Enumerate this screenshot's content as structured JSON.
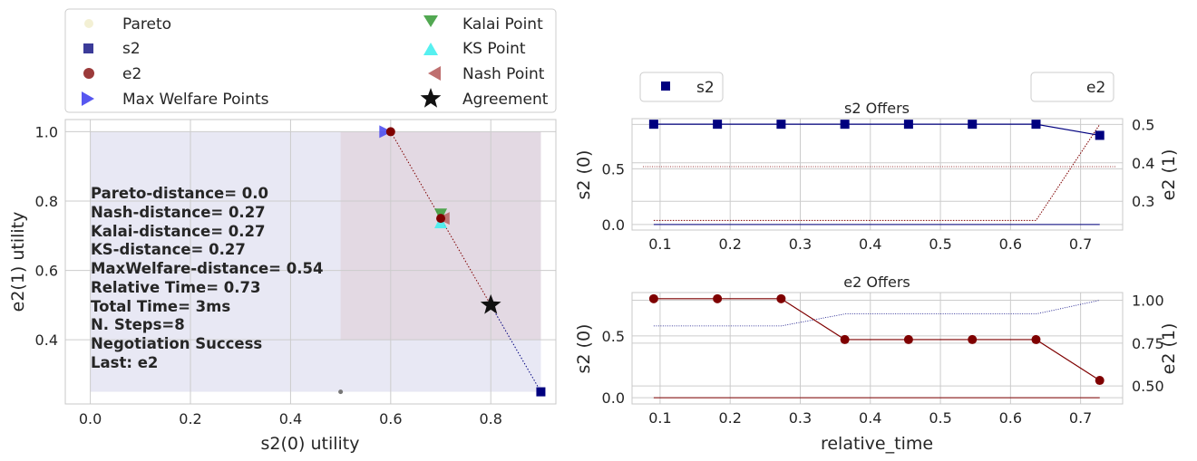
{
  "legend_main": {
    "items": [
      {
        "label": "Pareto",
        "marker": "circle",
        "color": "#f3f0d4"
      },
      {
        "label": "s2",
        "marker": "square",
        "color": "#3b3b99"
      },
      {
        "label": "e2",
        "marker": "circle",
        "color": "#9b3a3a"
      },
      {
        "label": "Max Welfare Points",
        "marker": "triangle-right",
        "color": "#4545ee"
      },
      {
        "label": "Kalai Point",
        "marker": "triangle-down",
        "color": "#3f9f3f"
      },
      {
        "label": "KS Point",
        "marker": "triangle-up",
        "color": "#44eeee"
      },
      {
        "label": "Nash Point",
        "marker": "triangle-left",
        "color": "#b86060"
      },
      {
        "label": "Agreement",
        "marker": "star",
        "color": "#000000"
      }
    ]
  },
  "stats_lines": [
    "Pareto-distance=  0.0",
    "Nash-distance= 0.27",
    "Kalai-distance= 0.27",
    "KS-distance= 0.27",
    "MaxWelfare-distance= 0.54",
    "Relative Time= 0.73",
    "Total Time= 3ms",
    "N. Steps=8",
    "Negotiation Success",
    "Last: e2"
  ],
  "colors": {
    "s2": "#00007f",
    "e2": "#7f0000",
    "region_s2": "#e8e8f4",
    "region_e2": "#e3d9e3"
  },
  "chart_data": [
    {
      "type": "scatter",
      "xlabel": "s2(0) utility",
      "ylabel": "e2(1) utility",
      "xlim": [
        -0.05,
        0.93
      ],
      "ylim": [
        0.215,
        1.035
      ],
      "xticks": [
        "0.0",
        "0.2",
        "0.4",
        "0.6",
        "0.8"
      ],
      "xtick_values": [
        0.0,
        0.2,
        0.4,
        0.6,
        0.8
      ],
      "yticks": [
        "0.4",
        "0.6",
        "0.8",
        "1.0"
      ],
      "ytick_values": [
        0.4,
        0.6,
        0.8,
        1.0
      ],
      "grid": true,
      "region_s2": {
        "x": [
          0.0,
          0.9
        ],
        "y": [
          0.25,
          1.0
        ]
      },
      "region_e2": {
        "x": [
          0.5,
          0.9
        ],
        "y": [
          0.4,
          1.0
        ]
      },
      "pareto_points": [
        {
          "x": 0.5,
          "y": 0.25
        }
      ],
      "s2_offers": {
        "x": [
          0.9,
          0.9,
          0.9,
          0.9,
          0.9,
          0.9,
          0.9,
          0.8
        ],
        "y": [
          0.25,
          0.25,
          0.25,
          0.25,
          0.25,
          0.25,
          0.25,
          0.5
        ]
      },
      "e2_offers": {
        "x": [
          0.6,
          0.6,
          0.6,
          0.7,
          0.7,
          0.7,
          0.7,
          0.8
        ],
        "y": [
          1.0,
          1.0,
          1.0,
          0.75,
          0.75,
          0.75,
          0.75,
          0.5
        ]
      },
      "max_welfare": {
        "x": 0.59,
        "y": 1.0
      },
      "kalai": {
        "x": 0.7,
        "y": 0.76
      },
      "ks": {
        "x": 0.7,
        "y": 0.74
      },
      "nash": {
        "x": 0.705,
        "y": 0.75
      },
      "e2_point": {
        "x": 0.6,
        "y": 1.0
      },
      "e2_point2": {
        "x": 0.7,
        "y": 0.75
      },
      "s2_point": {
        "x": 0.9,
        "y": 0.25
      },
      "agreement": {
        "x": 0.8,
        "y": 0.5
      }
    },
    {
      "type": "line",
      "title": "s2 Offers",
      "xlim": [
        0.06,
        0.76
      ],
      "ylim_left": [
        -0.05,
        0.95
      ],
      "ylim_right": [
        0.225,
        0.515
      ],
      "ylabel_left": "s2 (0)",
      "ylabel_right": "e2 (1)",
      "xticks": [
        "0.1",
        "0.2",
        "0.3",
        "0.4",
        "0.5",
        "0.6",
        "0.7"
      ],
      "xtick_values": [
        0.1,
        0.2,
        0.3,
        0.4,
        0.5,
        0.6,
        0.7
      ],
      "yticks_left": [
        "0.0",
        "0.5"
      ],
      "ytick_left_values": [
        0.0,
        0.5
      ],
      "yticks_right": [
        "0.3",
        "0.4",
        "0.5"
      ],
      "ytick_right_values": [
        0.3,
        0.4,
        0.5
      ],
      "legend_left": "s2",
      "legend_right": "e2",
      "x": [
        0.0909,
        0.1818,
        0.2727,
        0.3636,
        0.4545,
        0.5455,
        0.6364,
        0.7273
      ],
      "s2_utility": [
        0.9,
        0.9,
        0.9,
        0.9,
        0.9,
        0.9,
        0.9,
        0.8
      ],
      "e2_utility": [
        0.25,
        0.25,
        0.25,
        0.25,
        0.25,
        0.25,
        0.25,
        0.5
      ],
      "own_line": [
        0.0,
        0.0,
        0.0,
        0.0,
        0.0,
        0.0,
        0.0,
        0.0
      ],
      "reserved_right": 0.39
    },
    {
      "type": "line",
      "title": "e2 Offers",
      "xlabel": "relative_time",
      "xlim": [
        0.06,
        0.76
      ],
      "ylim_left": [
        -0.05,
        0.85
      ],
      "ylim_right": [
        0.395,
        1.045
      ],
      "ylabel_left": "s2 (0)",
      "ylabel_right": "e2 (1)",
      "xticks": [
        "0.1",
        "0.2",
        "0.3",
        "0.4",
        "0.5",
        "0.6",
        "0.7"
      ],
      "xtick_values": [
        0.1,
        0.2,
        0.3,
        0.4,
        0.5,
        0.6,
        0.7
      ],
      "yticks_left": [
        "0.0",
        "0.5"
      ],
      "ytick_left_values": [
        0.0,
        0.5
      ],
      "yticks_right": [
        "0.50",
        "0.75",
        "1.00"
      ],
      "ytick_right_values": [
        0.5,
        0.75,
        1.0
      ],
      "x": [
        0.0909,
        0.1818,
        0.2727,
        0.3636,
        0.4545,
        0.5455,
        0.6364,
        0.7273
      ],
      "s2_utility": [
        0.8,
        0.8,
        0.8,
        0.47,
        0.47,
        0.47,
        0.47,
        0.14
      ],
      "e2_utility": [
        0.85,
        0.85,
        0.85,
        0.92,
        0.92,
        0.92,
        0.92,
        1.0
      ],
      "own_line": [
        0.0,
        0.0,
        0.0,
        0.0,
        0.0,
        0.0,
        0.0,
        0.0
      ]
    }
  ]
}
